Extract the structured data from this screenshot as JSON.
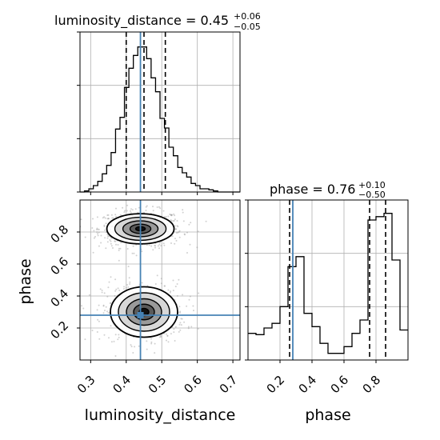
{
  "chart_data": {
    "type": "corner",
    "parameters": [
      "luminosity_distance",
      "phase"
    ],
    "truths": {
      "luminosity_distance": 0.44,
      "phase": 0.28
    },
    "grid": true,
    "panels": [
      {
        "type": "histogram",
        "parameter": "luminosity_distance",
        "title": {
          "label": "luminosity_distance = 0.45",
          "plus": "+0.06",
          "minus": "−0.05"
        },
        "xlim": [
          0.27,
          0.72
        ],
        "bin_edges": [
          0.27,
          0.2825,
          0.295,
          0.3075,
          0.32,
          0.3325,
          0.345,
          0.3575,
          0.37,
          0.3825,
          0.395,
          0.4075,
          0.42,
          0.4325,
          0.445,
          0.4575,
          0.47,
          0.4825,
          0.495,
          0.5075,
          0.52,
          0.5325,
          0.545,
          0.5575,
          0.57,
          0.5825,
          0.595,
          0.6075,
          0.62,
          0.6325,
          0.645,
          0.6575,
          0.67,
          0.6825,
          0.695,
          0.7075,
          0.72
        ],
        "counts": [
          0,
          1,
          3,
          6,
          10,
          17,
          25,
          37,
          59,
          70,
          98,
          116,
          128,
          136,
          136,
          125,
          107,
          94,
          69,
          60,
          42,
          34,
          23,
          18,
          14,
          8,
          6,
          3,
          3,
          2,
          1,
          0,
          0,
          0,
          0,
          0
        ],
        "ylim": [
          0,
          150
        ],
        "yticks": [
          0,
          50,
          100,
          150
        ],
        "quantiles": [
          0.4,
          0.45,
          0.51
        ]
      },
      {
        "type": "histogram",
        "parameter": "phase",
        "title": {
          "label": "phase = 0.76",
          "plus": "+0.10",
          "minus": "−0.50"
        },
        "xlim": [
          0.0,
          1.0
        ],
        "bin_edges": [
          0.0,
          0.05,
          0.1,
          0.15,
          0.2,
          0.25,
          0.3,
          0.35,
          0.4,
          0.45,
          0.5,
          0.55,
          0.6,
          0.65,
          0.7,
          0.75,
          0.8,
          0.85,
          0.9,
          0.95,
          1.0
        ],
        "counts": [
          40,
          38,
          48,
          55,
          80,
          140,
          155,
          70,
          50,
          25,
          10,
          10,
          20,
          40,
          60,
          210,
          215,
          220,
          150,
          45
        ],
        "ylim": [
          0,
          240
        ],
        "yticks": [
          0,
          80,
          160,
          240
        ],
        "xticks": [
          0.2,
          0.4,
          0.6,
          0.8
        ],
        "quantiles": [
          0.26,
          0.76,
          0.86
        ]
      },
      {
        "type": "2d-density",
        "x": "luminosity_distance",
        "y": "phase",
        "xlim": [
          0.27,
          0.72
        ],
        "ylim": [
          0.0,
          1.0
        ],
        "xticks": [
          0.3,
          0.4,
          0.5,
          0.6,
          0.7
        ],
        "yticks": [
          0.2,
          0.4,
          0.6,
          0.8
        ],
        "modes": [
          {
            "x": 0.44,
            "y": 0.82,
            "sx": 0.045,
            "sy": 0.045,
            "weight": 0.6
          },
          {
            "x": 0.45,
            "y": 0.3,
            "sx": 0.045,
            "sy": 0.075,
            "weight": 0.4
          }
        ]
      }
    ],
    "xlabels": [
      "luminosity_distance",
      "phase"
    ],
    "ylabel": "phase",
    "colors": {
      "hist": "#000000",
      "truth": "#4682b4",
      "grid": "#b0b0b0",
      "points": "#9a9a9a",
      "density_dark": "#111111"
    }
  }
}
